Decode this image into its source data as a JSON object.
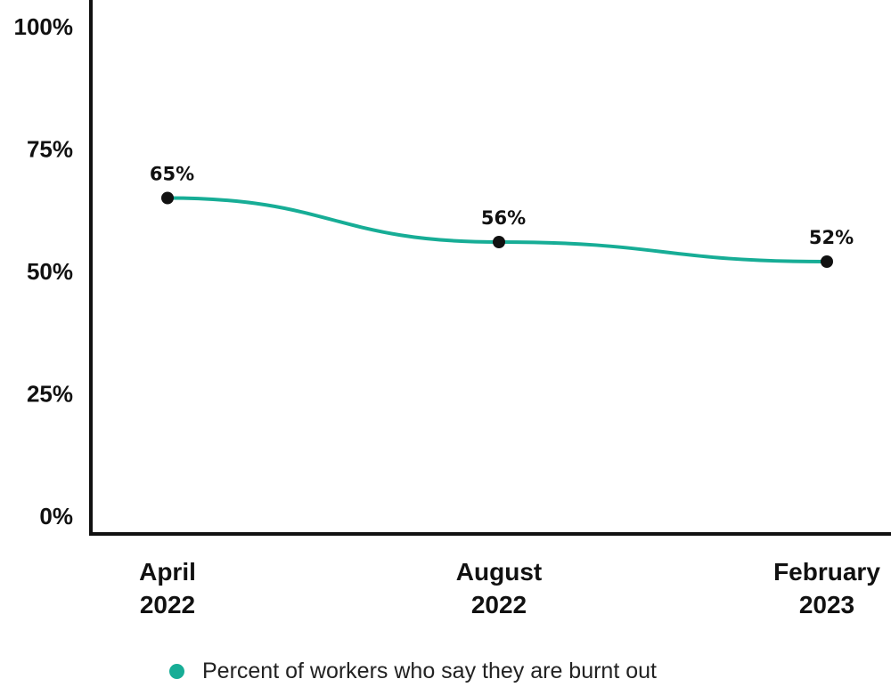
{
  "chart_data": {
    "type": "line",
    "categories": [
      [
        "April",
        "2022"
      ],
      [
        "August",
        "2022"
      ],
      [
        "February",
        "2023"
      ]
    ],
    "series": [
      {
        "name": "Percent of workers who say they are burnt out",
        "values": [
          65,
          56,
          52
        ]
      }
    ],
    "data_labels": [
      "65%",
      "56%",
      "52%"
    ],
    "y_ticks": [
      "0%",
      "25%",
      "50%",
      "75%",
      "100%"
    ],
    "ylim": [
      0,
      100
    ],
    "grid": false,
    "legend_position": "bottom",
    "line_color": "#17ad96",
    "marker_color": "#111111"
  }
}
